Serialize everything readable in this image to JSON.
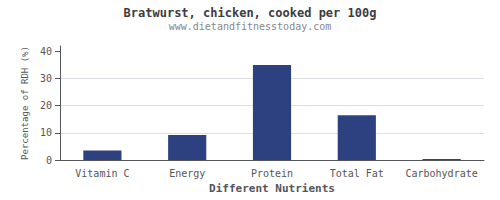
{
  "chart_data": {
    "type": "bar",
    "title": "Bratwurst, chicken, cooked per 100g",
    "subtitle": "www.dietandfitnesstoday.com",
    "xlabel": "Different Nutrients",
    "ylabel": "Percentage of RDH (%)",
    "categories": [
      "Vitamin C",
      "Energy",
      "Protein",
      "Total Fat",
      "Carbohydrate"
    ],
    "values": [
      3.5,
      9.2,
      35.0,
      16.5,
      0.4
    ],
    "color": "#2d4080",
    "ylim": [
      0,
      42
    ],
    "yticks": [
      0,
      10,
      20,
      30,
      40
    ],
    "grid": true
  }
}
